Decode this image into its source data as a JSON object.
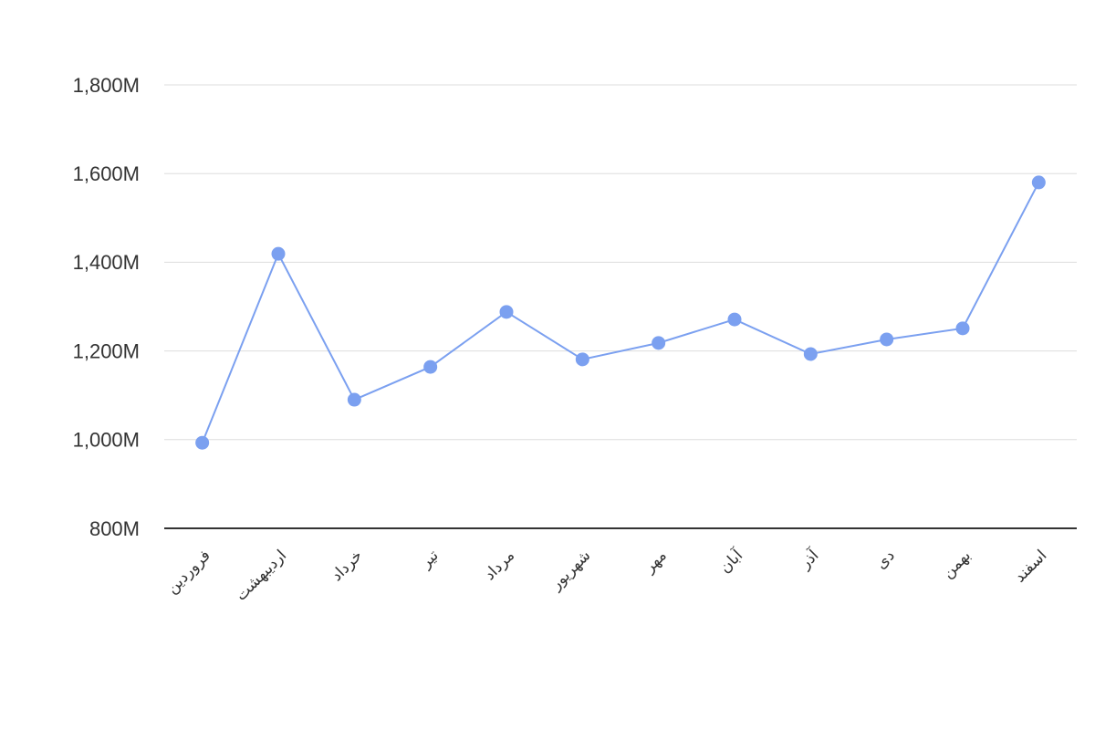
{
  "chart_data": {
    "type": "line",
    "categories": [
      "فروردین",
      "اردیبهشت",
      "خرداد",
      "تیر",
      "مرداد",
      "شهریور",
      "مهر",
      "آبان",
      "آذر",
      "دی",
      "بهمن",
      "اسفند"
    ],
    "values": [
      993,
      1419,
      1090,
      1164,
      1288,
      1181,
      1218,
      1271,
      1193,
      1226,
      1251,
      1580
    ],
    "color": "#7ba0f0",
    "ylim": [
      800,
      1800
    ],
    "yticks": [
      {
        "value": 800,
        "label": "800M"
      },
      {
        "value": 1000,
        "label": "1,000M"
      },
      {
        "value": 1200,
        "label": "1,200M"
      },
      {
        "value": 1400,
        "label": "1,400M"
      },
      {
        "value": 1600,
        "label": "1,600M"
      },
      {
        "value": 1800,
        "label": "1,800M"
      }
    ],
    "grid": true
  }
}
